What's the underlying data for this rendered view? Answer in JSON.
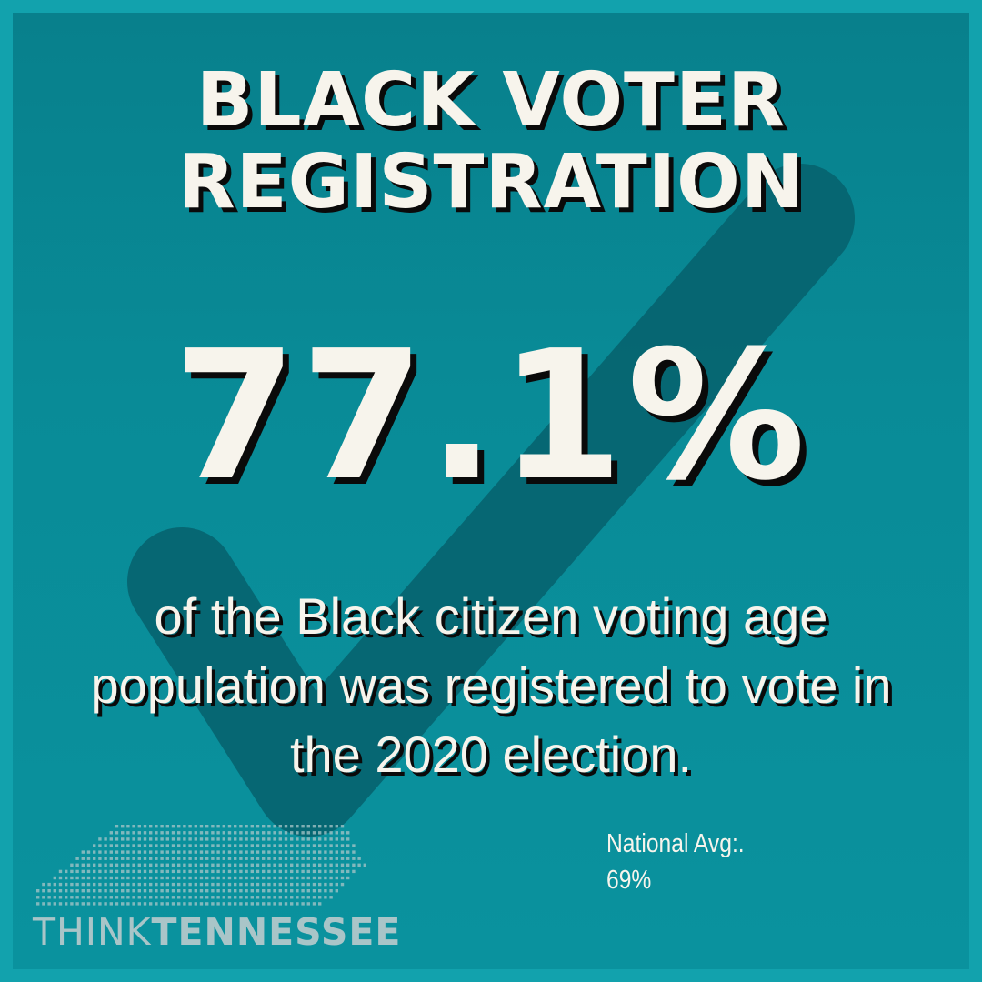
{
  "title": {
    "line1": "BLACK VOTER",
    "line2": "REGISTRATION"
  },
  "stat": {
    "value": "77.1%"
  },
  "description": {
    "line1": "of the Black citizen voting age",
    "line2": "population was registered to vote in",
    "line3": "the 2020 election."
  },
  "national_avg": {
    "label": "National Avg:.",
    "value": "69%"
  },
  "logo": {
    "word1": "THINK",
    "word2": "TENNESSEE"
  },
  "colors": {
    "background": "#098b97",
    "frame": "#12a2ad",
    "checkmark": "#06606c",
    "text": "#f7f4ec",
    "shadow": "#0a0a0a",
    "logo": "#a9c5c8"
  },
  "icons": {
    "background_mark": "checkmark-icon",
    "logo_mark": "tennessee-dot-map-icon"
  }
}
